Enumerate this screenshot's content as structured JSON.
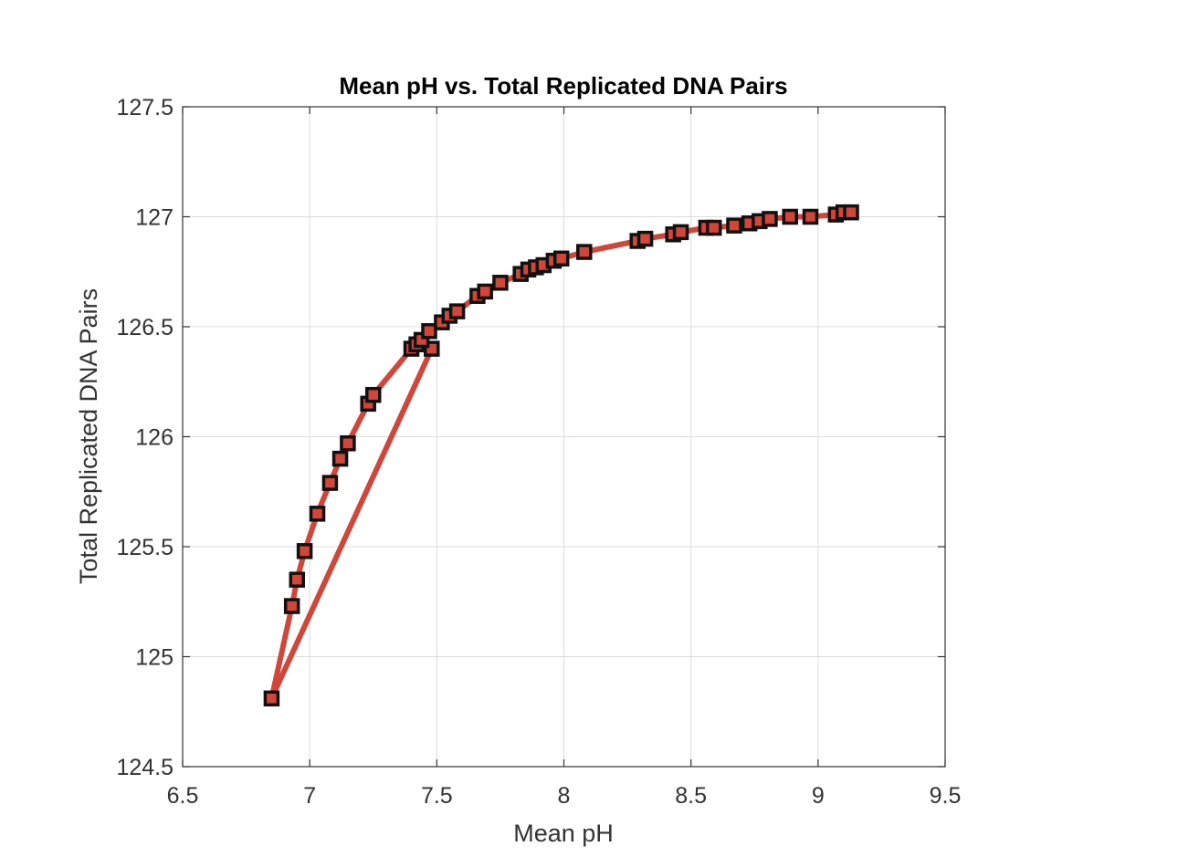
{
  "chart_data": {
    "type": "line",
    "title": "Mean pH vs. Total Replicated DNA Pairs",
    "xlabel": "Mean pH",
    "ylabel": "Total Replicated DNA Pairs",
    "xlim": [
      6.5,
      9.5
    ],
    "ylim": [
      124.5,
      127.5
    ],
    "xticks": [
      "6.5",
      "7",
      "7.5",
      "8",
      "8.5",
      "9",
      "9.5"
    ],
    "yticks": [
      "124.5",
      "125",
      "125.5",
      "126",
      "126.5",
      "127",
      "127.5"
    ],
    "grid": true,
    "line_color": "#d0473a",
    "marker": "square",
    "marker_face_color": "#d0473a",
    "marker_edge_color": "#111111",
    "series": [
      {
        "x": [
          7.48,
          6.85,
          6.93,
          6.95,
          6.98,
          7.03,
          7.08,
          7.12,
          7.15,
          7.23,
          7.25,
          7.4,
          7.42,
          7.44,
          7.47,
          7.52,
          7.55,
          7.58,
          7.66,
          7.69,
          7.75,
          7.83,
          7.86,
          7.89,
          7.92,
          7.96,
          7.99,
          8.08,
          8.29,
          8.32,
          8.43,
          8.46,
          8.56,
          8.59,
          8.67,
          8.73,
          8.77,
          8.81,
          8.89,
          8.97,
          9.07,
          9.1,
          9.13
        ],
        "y": [
          126.4,
          124.81,
          125.23,
          125.35,
          125.48,
          125.65,
          125.79,
          125.9,
          125.97,
          126.15,
          126.19,
          126.4,
          126.42,
          126.44,
          126.48,
          126.52,
          126.55,
          126.57,
          126.64,
          126.66,
          126.7,
          126.74,
          126.76,
          126.77,
          126.78,
          126.8,
          126.81,
          126.84,
          126.89,
          126.9,
          126.92,
          126.93,
          126.95,
          126.95,
          126.96,
          126.97,
          126.98,
          126.99,
          127.0,
          127.0,
          127.01,
          127.02,
          127.02
        ]
      }
    ]
  }
}
